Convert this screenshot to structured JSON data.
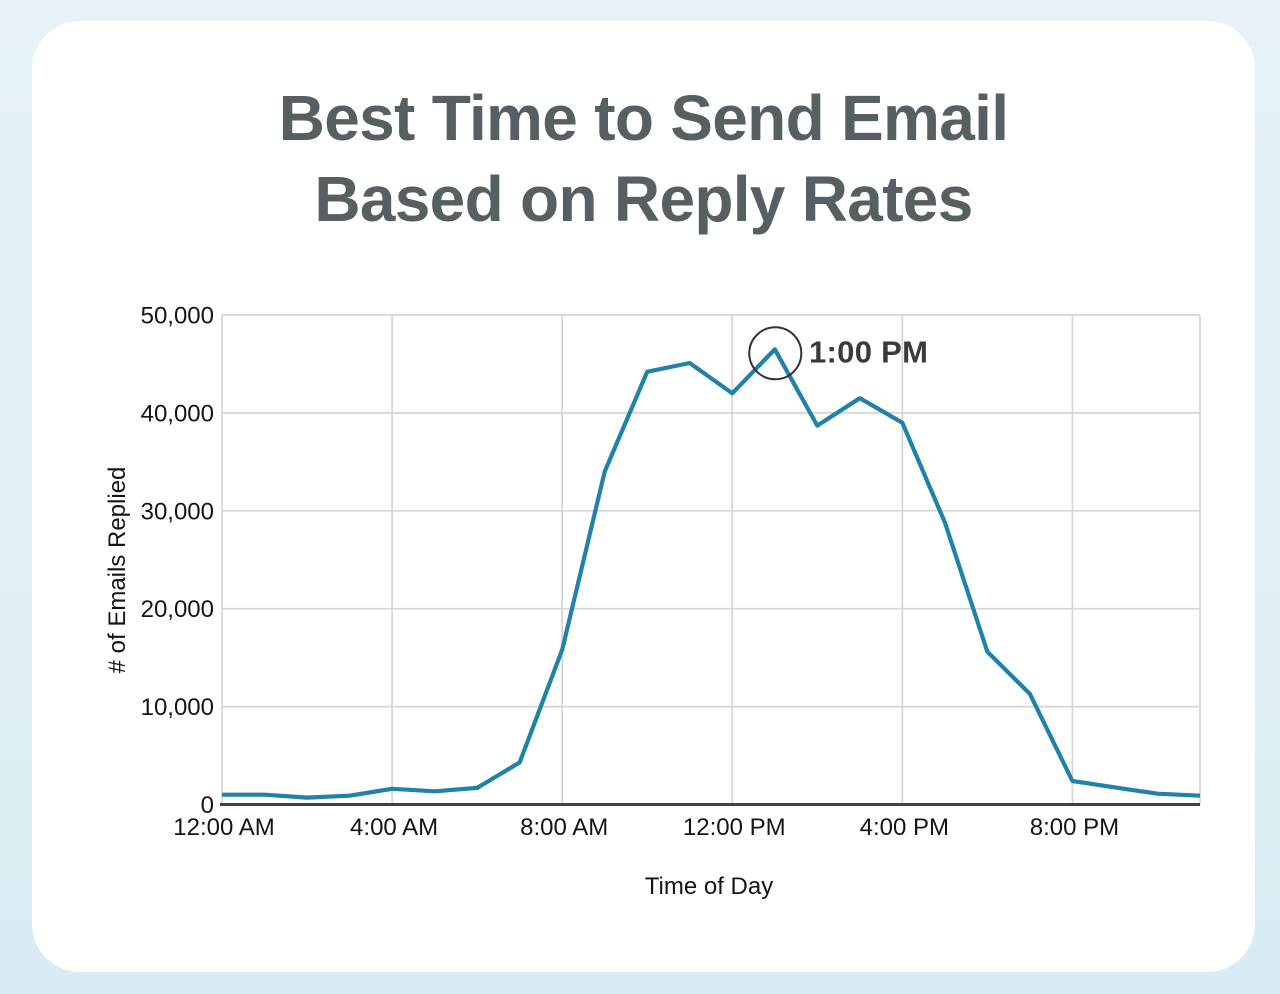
{
  "title": {
    "line1": "Best Time to Send Email",
    "line2": "Based on Reply Rates"
  },
  "colors": {
    "background": "#dfeef4",
    "card": "#ffffff",
    "title_text": "#566063",
    "line": "#2082a8",
    "gridline": "#d5d5d5",
    "axis": "#414141",
    "tick_text": "#141414",
    "annotation_text": "#3a3a3a",
    "annotation_circle": "#333333"
  },
  "chart_data": {
    "type": "line",
    "title": "Best Time to Send Email Based on Reply Rates",
    "xlabel": "Time of Day",
    "ylabel": "# of Emails Replied",
    "x": [
      "12:00 AM",
      "1:00 AM",
      "2:00 AM",
      "3:00 AM",
      "4:00 AM",
      "5:00 AM",
      "6:00 AM",
      "7:00 AM",
      "8:00 AM",
      "9:00 AM",
      "10:00 AM",
      "11:00 AM",
      "12:00 PM",
      "1:00 PM",
      "2:00 PM",
      "3:00 PM",
      "4:00 PM",
      "5:00 PM",
      "6:00 PM",
      "7:00 PM",
      "8:00 PM",
      "9:00 PM",
      "10:00 PM",
      "11:00 PM"
    ],
    "values": [
      1000,
      1000,
      700,
      900,
      1600,
      1350,
      1700,
      4300,
      15800,
      34000,
      44200,
      45100,
      42000,
      46500,
      38700,
      41500,
      39000,
      28800,
      15600,
      11300,
      2400,
      1750,
      1100,
      900
    ],
    "x_tick_hours": [
      0,
      4,
      8,
      12,
      16,
      20
    ],
    "x_tick_labels": [
      "12:00 AM",
      "4:00 AM",
      "8:00 AM",
      "12:00 PM",
      "4:00 PM",
      "8:00 PM"
    ],
    "y_ticks": [
      0,
      10000,
      20000,
      30000,
      40000,
      50000
    ],
    "y_tick_labels": [
      "0",
      "10,000",
      "20,000",
      "30,000",
      "40,000",
      "50,000"
    ],
    "ylim": [
      0,
      50000
    ],
    "grid": true,
    "legend": false,
    "annotation": {
      "label": "1:00 PM",
      "index": 13,
      "value": 46500
    }
  }
}
